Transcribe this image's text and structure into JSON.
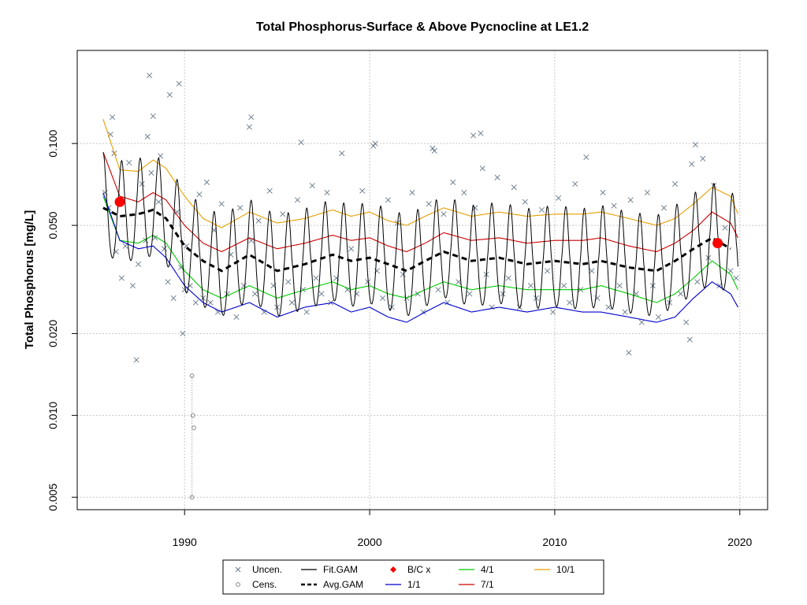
{
  "chart_data": {
    "type": "scatter",
    "title": "Total Phosphorus-Surface & Above Pycnocline at LE1.2",
    "xlabel": "",
    "ylabel": "Total Phosphorus [mg/L]",
    "y_scale": "log",
    "xlim": [
      1984.2,
      2021.5
    ],
    "ylim": [
      0.0045,
      0.22
    ],
    "x_ticks": [
      "1990",
      "2000",
      "2010",
      "2020"
    ],
    "y_ticks": [
      "0.005",
      "0.010",
      "0.020",
      "0.050",
      "0.100"
    ],
    "grid": true,
    "legend_position": "bottom",
    "legend": [
      {
        "label": "Uncen.",
        "symbol": "x",
        "color": "#667788"
      },
      {
        "label": "Cens.",
        "symbol": "open-circle",
        "color": "#888888"
      },
      {
        "label": "Fit.GAM",
        "symbol": "line",
        "color": "#000000"
      },
      {
        "label": "Avg.GAM",
        "symbol": "dashed-line",
        "color": "#000000"
      },
      {
        "label": "B/C x",
        "symbol": "filled-diamond",
        "color": "#ff0000"
      },
      {
        "label": "1/1",
        "symbol": "line",
        "color": "#0000cc"
      },
      {
        "label": "4/1",
        "symbol": "line",
        "color": "#00cc00"
      },
      {
        "label": "7/1",
        "symbol": "line",
        "color": "#cc0000"
      },
      {
        "label": "10/1",
        "symbol": "line",
        "color": "#e69f00"
      }
    ],
    "series": [
      {
        "name": "Avg.GAM",
        "x": [
          1985.6,
          1986.5,
          1987.5,
          1988.3,
          1989.0,
          1990.0,
          1991.0,
          1992.0,
          1993.5,
          1995.0,
          1996.5,
          1998.0,
          1999.0,
          2000.0,
          2001.0,
          2002.0,
          2003.0,
          2004.0,
          2005.5,
          2007.0,
          2008.5,
          2010.0,
          2011.5,
          2012.5,
          2014.0,
          2015.5,
          2016.5,
          2017.5,
          2018.5,
          2019.5
        ],
        "y": [
          0.058,
          0.054,
          0.055,
          0.057,
          0.053,
          0.042,
          0.037,
          0.034,
          0.039,
          0.034,
          0.036,
          0.039,
          0.037,
          0.038,
          0.036,
          0.034,
          0.037,
          0.04,
          0.037,
          0.038,
          0.036,
          0.037,
          0.036,
          0.037,
          0.035,
          0.034,
          0.037,
          0.041,
          0.045,
          0.041
        ]
      },
      {
        "name": "1/1",
        "x": [
          1985.6,
          1986.5,
          1987.5,
          1988.3,
          1989.0,
          1990.0,
          1991.0,
          1992.0,
          1993.5,
          1995.0,
          1996.5,
          1998.0,
          1999.0,
          2000.0,
          2001.0,
          2002.0,
          2003.0,
          2004.0,
          2005.5,
          2007.0,
          2008.5,
          2010.0,
          2011.5,
          2012.5,
          2014.0,
          2015.5,
          2016.5,
          2017.5,
          2018.5,
          2019.5,
          2019.9
        ],
        "y": [
          0.066,
          0.044,
          0.041,
          0.042,
          0.038,
          0.03,
          0.026,
          0.024,
          0.026,
          0.023,
          0.025,
          0.026,
          0.024,
          0.025,
          0.023,
          0.022,
          0.024,
          0.026,
          0.024,
          0.025,
          0.024,
          0.025,
          0.024,
          0.024,
          0.023,
          0.022,
          0.023,
          0.027,
          0.031,
          0.028,
          0.025
        ]
      },
      {
        "name": "4/1",
        "x": [
          1985.6,
          1986.5,
          1987.5,
          1988.3,
          1989.0,
          1990.0,
          1991.0,
          1992.0,
          1993.5,
          1995.0,
          1996.5,
          1998.0,
          1999.0,
          2000.0,
          2001.0,
          2002.0,
          2003.0,
          2004.0,
          2005.5,
          2007.0,
          2008.5,
          2010.0,
          2011.5,
          2012.5,
          2014.0,
          2015.5,
          2016.5,
          2017.5,
          2018.5,
          2019.5,
          2019.9
        ],
        "y": [
          0.064,
          0.044,
          0.043,
          0.046,
          0.043,
          0.034,
          0.029,
          0.027,
          0.03,
          0.027,
          0.029,
          0.031,
          0.029,
          0.03,
          0.028,
          0.027,
          0.029,
          0.031,
          0.029,
          0.03,
          0.029,
          0.029,
          0.029,
          0.03,
          0.028,
          0.026,
          0.028,
          0.032,
          0.037,
          0.033,
          0.029
        ]
      },
      {
        "name": "7/1",
        "x": [
          1985.6,
          1986.5,
          1987.5,
          1988.3,
          1989.0,
          1990.0,
          1991.0,
          1992.0,
          1993.5,
          1995.0,
          1996.5,
          1998.0,
          1999.0,
          2000.0,
          2001.0,
          2002.0,
          2003.0,
          2004.0,
          2005.5,
          2007.0,
          2008.5,
          2010.0,
          2011.5,
          2012.5,
          2014.0,
          2015.5,
          2016.5,
          2017.5,
          2018.5,
          2019.5,
          2019.9
        ],
        "y": [
          0.093,
          0.064,
          0.061,
          0.066,
          0.062,
          0.05,
          0.043,
          0.04,
          0.045,
          0.041,
          0.043,
          0.046,
          0.044,
          0.045,
          0.042,
          0.04,
          0.043,
          0.047,
          0.044,
          0.045,
          0.043,
          0.044,
          0.044,
          0.045,
          0.042,
          0.04,
          0.043,
          0.048,
          0.056,
          0.051,
          0.045
        ]
      },
      {
        "name": "10/1",
        "x": [
          1985.6,
          1986.5,
          1987.5,
          1988.3,
          1989.0,
          1990.0,
          1991.0,
          1992.0,
          1993.5,
          1995.0,
          1996.5,
          1998.0,
          1999.0,
          2000.0,
          2001.0,
          2002.0,
          2003.0,
          2004.0,
          2005.5,
          2007.0,
          2008.5,
          2010.0,
          2011.5,
          2012.5,
          2014.0,
          2015.5,
          2016.5,
          2017.5,
          2018.5,
          2019.5,
          2019.9
        ],
        "y": [
          0.123,
          0.08,
          0.079,
          0.087,
          0.081,
          0.064,
          0.053,
          0.049,
          0.056,
          0.051,
          0.053,
          0.057,
          0.054,
          0.056,
          0.052,
          0.05,
          0.054,
          0.058,
          0.054,
          0.056,
          0.054,
          0.055,
          0.055,
          0.056,
          0.053,
          0.05,
          0.053,
          0.06,
          0.069,
          0.064,
          0.055
        ]
      },
      {
        "name": "Fit.GAM",
        "x": [
          1985.6,
          2019.9
        ],
        "y": [
          0.058,
          0.041
        ],
        "seasonal": {
          "peak_frac": 0.6,
          "peak_factor": 1.6,
          "trough_factor": 0.68
        }
      },
      {
        "name": "B/C x",
        "x": [
          1986.5,
          2018.8
        ],
        "y": [
          0.061,
          0.043
        ]
      },
      {
        "name": "Cens.",
        "x": [
          1990.4,
          1990.45,
          1990.5,
          1990.4
        ],
        "y": [
          0.014,
          0.01,
          0.009,
          0.005
        ]
      },
      {
        "name": "Uncen.",
        "x": [
          1985.7,
          1985.9,
          1986.0,
          1986.2,
          1986.3,
          1986.6,
          1986.8,
          1987.0,
          1987.2,
          1987.5,
          1987.7,
          1987.9,
          1988.0,
          1988.2,
          1988.4,
          1988.6,
          1988.7,
          1988.9,
          1989.1,
          1989.4,
          1989.6,
          1989.8,
          1990.0,
          1990.1,
          1990.3,
          1990.6,
          1990.8,
          1991.0,
          1991.2,
          1991.4,
          1991.6,
          1991.8,
          1992.0,
          1992.3,
          1992.5,
          1992.8,
          1993.0,
          1993.2,
          1993.5,
          1993.6,
          1993.8,
          1994.0,
          1994.3,
          1994.6,
          1994.8,
          1995.0,
          1995.3,
          1995.6,
          1995.8,
          1996.1,
          1996.4,
          1996.6,
          1996.9,
          1997.1,
          1997.4,
          1997.7,
          1997.9,
          1998.2,
          1998.5,
          1998.8,
          1999.0,
          1999.3,
          1999.6,
          1999.9,
          2000.2,
          2000.4,
          2000.7,
          2001.0,
          2001.2,
          2001.5,
          2001.8,
          2002.0,
          2002.3,
          2002.6,
          2002.9,
          2003.2,
          2003.5,
          2003.7,
          2004.0,
          2004.2,
          2004.5,
          2004.8,
          2005.1,
          2005.4,
          2005.7,
          2006.0,
          2006.3,
          2006.6,
          2006.9,
          2007.2,
          2007.5,
          2007.8,
          2008.1,
          2008.4,
          2008.7,
          2009.0,
          2009.3,
          2009.6,
          2009.9,
          2010.2,
          2010.5,
          2010.8,
          2011.1,
          2011.4,
          2011.7,
          2012.0,
          2012.3,
          2012.6,
          2012.9,
          2013.2,
          2013.5,
          2013.8,
          2014.1,
          2014.4,
          2014.7,
          2015.0,
          2015.3,
          2015.6,
          2015.9,
          2016.2,
          2016.5,
          2016.8,
          2017.1,
          2017.4,
          2017.7,
          2018.0,
          2018.3,
          2018.6,
          2018.9,
          2019.2,
          2019.5,
          2019.8,
          1988.1,
          1988.3,
          1989.2,
          1989.7,
          1993.6,
          1996.3,
          2000.3,
          2005.6,
          2017.6,
          2014.0,
          2017.3,
          1989.9,
          1986.1,
          1987.4,
          2003.4,
          2006.1
        ],
        "y": [
          0.066,
          0.058,
          0.108,
          0.092,
          0.04,
          0.032,
          0.042,
          0.085,
          0.03,
          0.036,
          0.071,
          0.044,
          0.106,
          0.078,
          0.045,
          0.061,
          0.09,
          0.041,
          0.031,
          0.027,
          0.056,
          0.035,
          0.029,
          0.042,
          0.03,
          0.026,
          0.065,
          0.027,
          0.072,
          0.026,
          0.048,
          0.024,
          0.06,
          0.028,
          0.039,
          0.023,
          0.058,
          0.03,
          0.115,
          0.044,
          0.028,
          0.052,
          0.024,
          0.067,
          0.03,
          0.025,
          0.055,
          0.031,
          0.026,
          0.062,
          0.029,
          0.024,
          0.07,
          0.032,
          0.028,
          0.066,
          0.026,
          0.032,
          0.092,
          0.029,
          0.041,
          0.028,
          0.067,
          0.031,
          0.098,
          0.034,
          0.027,
          0.062,
          0.025,
          0.051,
          0.033,
          0.027,
          0.066,
          0.028,
          0.024,
          0.06,
          0.094,
          0.029,
          0.055,
          0.026,
          0.072,
          0.031,
          0.066,
          0.028,
          0.058,
          0.109,
          0.033,
          0.025,
          0.075,
          0.028,
          0.032,
          0.069,
          0.025,
          0.061,
          0.03,
          0.027,
          0.057,
          0.034,
          0.024,
          0.063,
          0.03,
          0.026,
          0.071,
          0.029,
          0.089,
          0.034,
          0.027,
          0.066,
          0.025,
          0.059,
          0.03,
          0.024,
          0.062,
          0.028,
          0.022,
          0.066,
          0.03,
          0.023,
          0.058,
          0.026,
          0.071,
          0.028,
          0.022,
          0.084,
          0.031,
          0.088,
          0.038,
          0.07,
          0.03,
          0.049,
          0.034,
          0.032,
          0.178,
          0.126,
          0.151,
          0.166,
          0.125,
          0.101,
          0.1,
          0.107,
          0.099,
          0.017,
          0.019,
          0.02,
          0.125,
          0.016,
          0.096,
          0.081
        ]
      }
    ]
  }
}
